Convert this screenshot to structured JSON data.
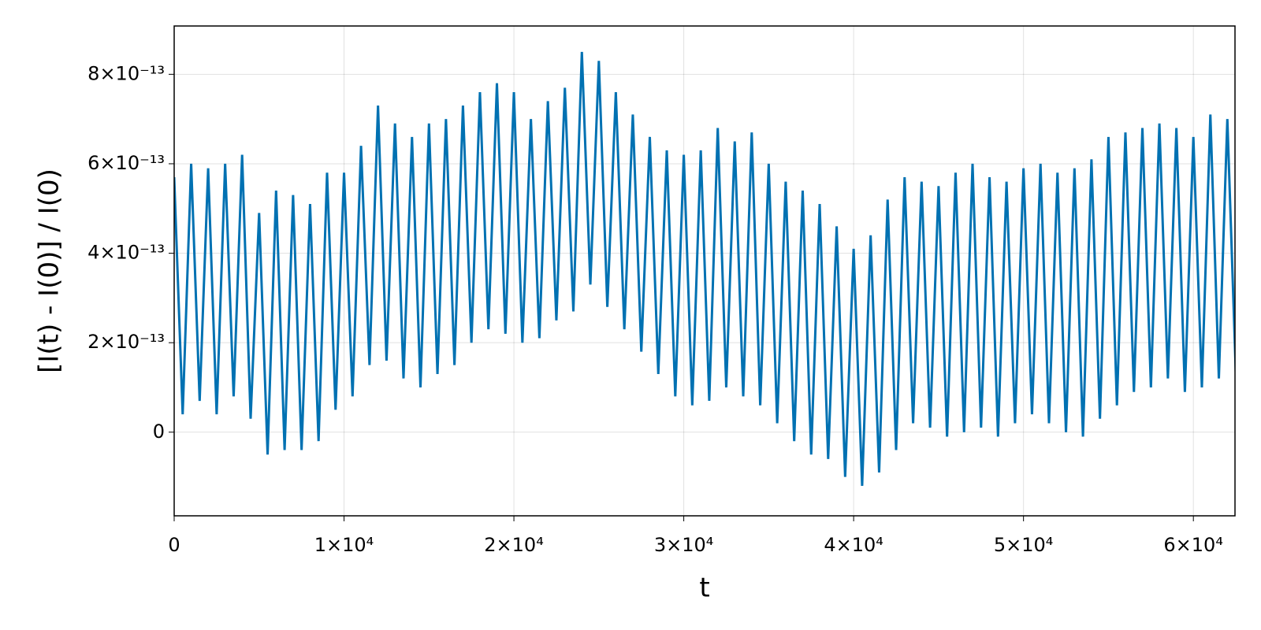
{
  "chart_data": {
    "type": "line",
    "xlabel": "t",
    "ylabel": "[I(t) - I(0)] / I(0)",
    "color": "#0071b2",
    "grid": true,
    "xlim": [
      0,
      62450
    ],
    "ylim": [
      -1.87e-13,
      9.08e-13
    ],
    "xticks": [
      0,
      {
        "value": 10000,
        "label": "1×10⁴"
      },
      {
        "value": 20000,
        "label": "2×10⁴"
      },
      {
        "value": 30000,
        "label": "3×10⁴"
      },
      {
        "value": 40000,
        "label": "4×10⁴"
      },
      {
        "value": 50000,
        "label": "5×10⁴"
      },
      {
        "value": 60000,
        "label": "6×10⁴"
      }
    ],
    "yticks": [
      0,
      {
        "value": 2e-13,
        "label": "2×10⁻¹³"
      },
      {
        "value": 4e-13,
        "label": "4×10⁻¹³"
      },
      {
        "value": 6e-13,
        "label": "6×10⁻¹³"
      },
      {
        "value": 8e-13,
        "label": "8×10⁻¹³"
      }
    ],
    "x": [
      0,
      500,
      1000,
      1500,
      2000,
      2500,
      3000,
      3500,
      4000,
      4500,
      5000,
      5500,
      6000,
      6500,
      7000,
      7500,
      8000,
      8500,
      9000,
      9500,
      10000,
      10500,
      11000,
      11500,
      12000,
      12500,
      13000,
      13500,
      14000,
      14500,
      15000,
      15500,
      16000,
      16500,
      17000,
      17500,
      18000,
      18500,
      19000,
      19500,
      20000,
      20500,
      21000,
      21500,
      22000,
      22500,
      23000,
      23500,
      24000,
      24500,
      25000,
      25500,
      26000,
      26500,
      27000,
      27500,
      28000,
      28500,
      29000,
      29500,
      30000,
      30500,
      31000,
      31500,
      32000,
      32500,
      33000,
      33500,
      34000,
      34500,
      35000,
      35500,
      36000,
      36500,
      37000,
      37500,
      38000,
      38500,
      39000,
      39500,
      40000,
      40500,
      41000,
      41500,
      42000,
      42500,
      43000,
      43500,
      44000,
      44500,
      45000,
      45500,
      46000,
      46500,
      47000,
      47500,
      48000,
      48500,
      49000,
      49500,
      50000,
      50500,
      51000,
      51500,
      52000,
      52500,
      53000,
      53500,
      54000,
      54500,
      55000,
      55500,
      56000,
      56500,
      57000,
      57500,
      58000,
      58500,
      59000,
      59500,
      60000,
      60500,
      61000,
      61500,
      62000,
      62500
    ],
    "values": [
      5.7e-13,
      4e-14,
      6e-13,
      7e-14,
      5.9e-13,
      4e-14,
      6e-13,
      8e-14,
      6.2e-13,
      3e-14,
      4.9e-13,
      -5e-14,
      5.4e-13,
      -4e-14,
      5.3e-13,
      -4e-14,
      5.1e-13,
      -2e-14,
      5.8e-13,
      5e-14,
      5.8e-13,
      8e-14,
      6.4e-13,
      1.5e-13,
      7.3e-13,
      1.6e-13,
      6.9e-13,
      1.2e-13,
      6.6e-13,
      1e-13,
      6.9e-13,
      1.3e-13,
      7e-13,
      1.5e-13,
      7.3e-13,
      2e-13,
      7.6e-13,
      2.3e-13,
      7.8e-13,
      2.2e-13,
      7.6e-13,
      2e-13,
      7e-13,
      2.1e-13,
      7.4e-13,
      2.5e-13,
      7.7e-13,
      2.7e-13,
      8.5e-13,
      3.3e-13,
      8.3e-13,
      2.8e-13,
      7.6e-13,
      2.3e-13,
      7.1e-13,
      1.8e-13,
      6.6e-13,
      1.3e-13,
      6.3e-13,
      8e-14,
      6.2e-13,
      6e-14,
      6.3e-13,
      7e-14,
      6.8e-13,
      1e-13,
      6.5e-13,
      8e-14,
      6.7e-13,
      6e-14,
      6e-13,
      2e-14,
      5.6e-13,
      -2e-14,
      5.4e-13,
      -5e-14,
      5.1e-13,
      -6e-14,
      4.6e-13,
      -1e-13,
      4.1e-13,
      -1.2e-13,
      4.4e-13,
      -9e-14,
      5.2e-13,
      -4e-14,
      5.7e-13,
      2e-14,
      5.6e-13,
      1e-14,
      5.5e-13,
      -1e-14,
      5.8e-13,
      0,
      6e-13,
      1e-14,
      5.7e-13,
      -1e-14,
      5.6e-13,
      2e-14,
      5.9e-13,
      4e-14,
      6e-13,
      2e-14,
      5.8e-13,
      0,
      5.9e-13,
      -1e-14,
      6.1e-13,
      3e-14,
      6.6e-13,
      6e-14,
      6.7e-13,
      9e-14,
      6.8e-13,
      1e-13,
      6.9e-13,
      1.2e-13,
      6.8e-13,
      9e-14,
      6.6e-13,
      1e-13,
      7.1e-13,
      1.2e-13,
      7e-13,
      1.3e-13
    ]
  }
}
